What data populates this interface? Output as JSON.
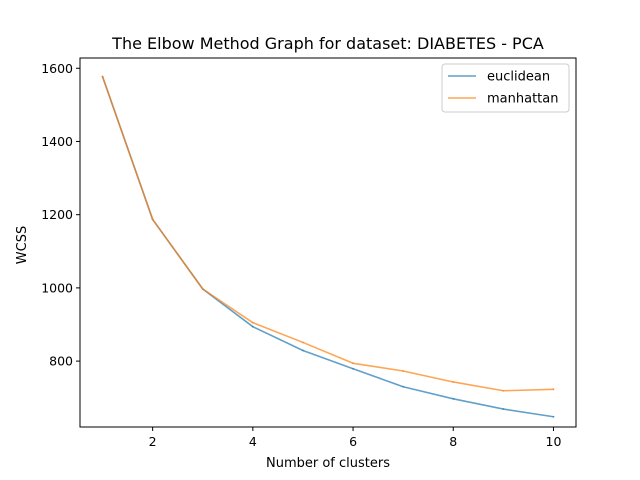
{
  "chart_data": {
    "type": "line",
    "title": "The Elbow Method Graph for dataset: DIABETES - PCA",
    "xlabel": "Number of clusters",
    "ylabel": "WCSS",
    "xlim": [
      0.55,
      10.45
    ],
    "ylim": [
      620,
      1628
    ],
    "xticks": [
      2,
      4,
      6,
      8,
      10
    ],
    "yticks": [
      800,
      1000,
      1200,
      1400,
      1600
    ],
    "x": [
      1,
      2,
      3,
      4,
      5,
      6,
      7,
      8,
      9,
      10
    ],
    "series": [
      {
        "name": "euclidean",
        "color": "#1f77b4",
        "values": [
          1577,
          1187,
          997,
          894,
          829,
          779,
          730,
          697,
          669,
          648
        ]
      },
      {
        "name": "manhattan",
        "color": "#ff7f0e",
        "values": [
          1577,
          1187,
          997,
          905,
          851,
          794,
          773,
          743,
          719,
          723
        ]
      }
    ],
    "legend_position": "top-right",
    "grid": false
  }
}
